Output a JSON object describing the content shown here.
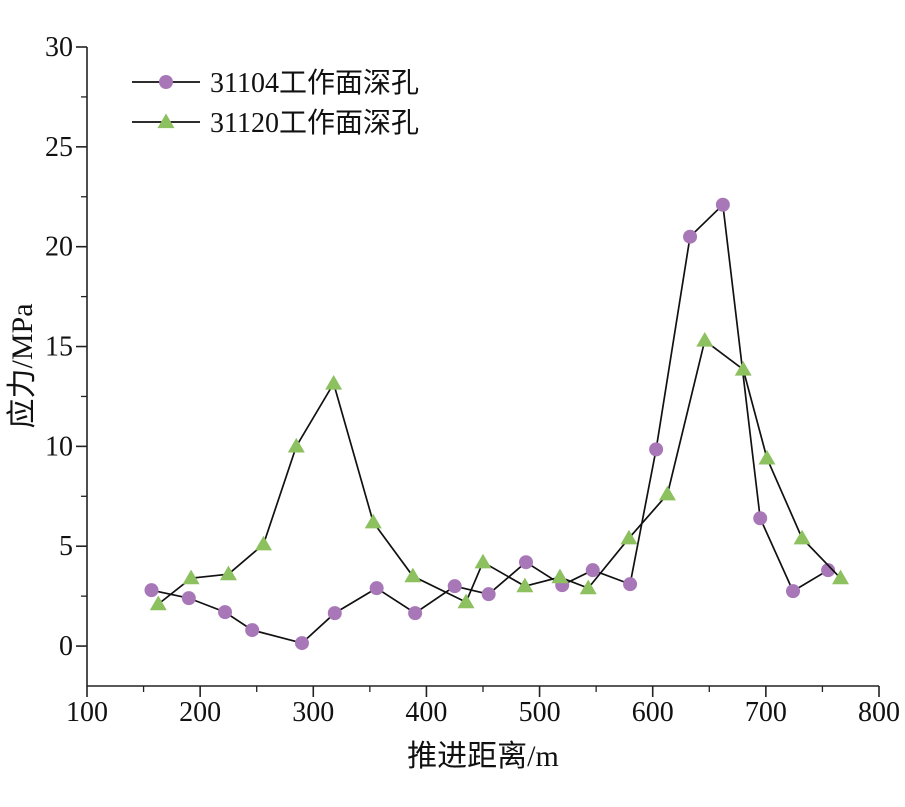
{
  "chart_data": {
    "type": "line",
    "title": "",
    "xlabel": "推进距离/m",
    "ylabel": "应力/MPa",
    "xlim": [
      100,
      800
    ],
    "ylim": [
      -2,
      30
    ],
    "xticks": [
      100,
      200,
      300,
      400,
      500,
      600,
      700,
      800
    ],
    "yticks": [
      0,
      5,
      10,
      15,
      20,
      25,
      30
    ],
    "legend_position": "top-left",
    "grid": false,
    "series": [
      {
        "name": "31104工作面深孔",
        "marker": "circle",
        "color": "#a877b8",
        "x": [
          157,
          190,
          222,
          246,
          290,
          319,
          356,
          390,
          425,
          455,
          488,
          520,
          547,
          580,
          603,
          633,
          662,
          695,
          724,
          755
        ],
        "y": [
          2.8,
          2.4,
          1.7,
          0.8,
          0.15,
          1.65,
          2.9,
          1.65,
          3.0,
          2.6,
          4.2,
          3.05,
          3.8,
          3.1,
          9.85,
          20.5,
          22.1,
          6.4,
          2.75,
          3.8
        ]
      },
      {
        "name": "31120工作面深孔",
        "marker": "triangle",
        "color": "#8dc05f",
        "x": [
          163,
          192,
          225,
          256,
          285,
          318,
          353,
          388,
          435,
          450,
          487,
          518,
          543,
          579,
          613,
          646,
          680,
          701,
          732,
          766
        ],
        "y": [
          2.1,
          3.4,
          3.6,
          5.1,
          10.0,
          13.15,
          6.2,
          3.5,
          2.2,
          4.2,
          3.0,
          3.45,
          2.9,
          5.4,
          7.6,
          15.3,
          13.85,
          9.4,
          5.4,
          3.4
        ]
      }
    ]
  }
}
